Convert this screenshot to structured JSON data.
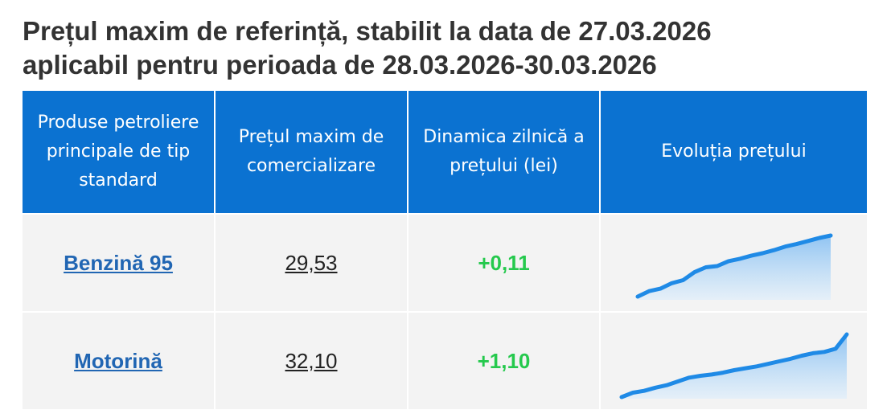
{
  "header": {
    "title_line1": "Prețul maxim de referință, stabilit la data de 27.03.2026",
    "title_line2": "aplicabil pentru perioada de 28.03.2026-30.03.2026"
  },
  "table": {
    "columns": [
      "Produse petroliere principale de tip standard",
      "Prețul maxim de comercializare",
      "Dinamica zilnică a prețului (lei)",
      "Evoluția prețului"
    ],
    "rows": [
      {
        "product": "Benzină 95",
        "price": "29,53",
        "change": "+0,11"
      },
      {
        "product": "Motorină",
        "price": "32,10",
        "change": "+1,10"
      }
    ]
  },
  "colors": {
    "header_bg": "#0b72d1",
    "link": "#2166b3",
    "positive_change": "#25c94d",
    "sparkline_line": "#1f8ae6",
    "row_bg": "#f3f3f3"
  },
  "chart_data": [
    {
      "type": "area",
      "series": [
        {
          "values": [
            0,
            0.09,
            0.13,
            0.22,
            0.27,
            0.4,
            0.48,
            0.5,
            0.58,
            0.62,
            0.67,
            0.71,
            0.76,
            0.82,
            0.86,
            0.91,
            0.96,
            1.0
          ]
        }
      ]
    },
    {
      "type": "area",
      "series": [
        {
          "values": [
            0,
            0.07,
            0.1,
            0.15,
            0.19,
            0.25,
            0.31,
            0.34,
            0.36,
            0.39,
            0.43,
            0.46,
            0.49,
            0.53,
            0.57,
            0.61,
            0.66,
            0.7,
            0.72,
            0.77,
            1.0
          ]
        }
      ]
    }
  ]
}
